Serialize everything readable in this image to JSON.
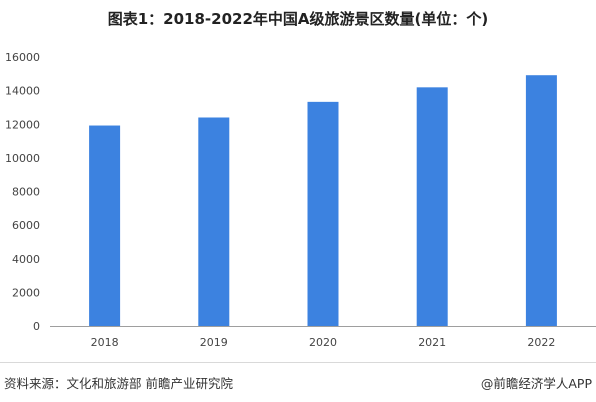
{
  "title": "图表1：2018-2022年中国A级旅游景区数量(单位：个)",
  "source": "资料来源：文化和旅游部 前瞻产业研究院",
  "brand": "@前瞻经济学人APP",
  "colors": {
    "bar": "#3c82e0",
    "axis": "#9e9e9e"
  },
  "chart_data": {
    "type": "bar",
    "title": "图表1：2018-2022年中国A级旅游景区数量(单位：个)",
    "categories": [
      "2018",
      "2019",
      "2020",
      "2021",
      "2022"
    ],
    "values": [
      11924,
      12402,
      13332,
      14196,
      14917
    ],
    "yticks": [
      0,
      2000,
      4000,
      6000,
      8000,
      10000,
      12000,
      14000,
      16000
    ],
    "ylim": [
      0,
      16000
    ],
    "xlabel": "",
    "ylabel": "",
    "grid": false,
    "legend": "none"
  }
}
